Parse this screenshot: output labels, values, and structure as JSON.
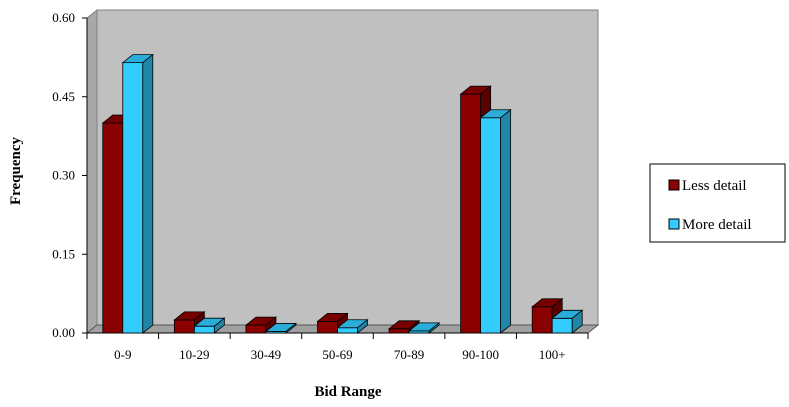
{
  "chart_data": {
    "type": "bar",
    "title": "",
    "xlabel": "Bid Range",
    "ylabel": "Frequency",
    "categories": [
      "0-9",
      "10-29",
      "30-49",
      "50-69",
      "70-89",
      "90-100",
      "100+"
    ],
    "y_ticks": [
      "0.00",
      "0.15",
      "0.30",
      "0.45",
      "0.60"
    ],
    "ylim": [
      0,
      0.6
    ],
    "grid": false,
    "style": "3d-clustered-column",
    "legend_position": "right",
    "plot_background": "#c0c0c0",
    "series": [
      {
        "name": "Less detail",
        "color": "#8b0000",
        "values": [
          0.4,
          0.025,
          0.015,
          0.022,
          0.008,
          0.455,
          0.05
        ]
      },
      {
        "name": "More detail",
        "color": "#33ccff",
        "values": [
          0.515,
          0.013,
          0.003,
          0.01,
          0.004,
          0.41,
          0.028
        ]
      }
    ]
  }
}
